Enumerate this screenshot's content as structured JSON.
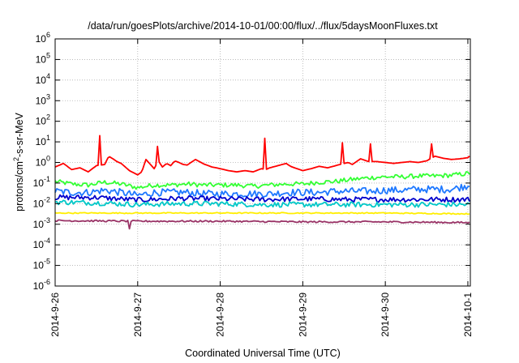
{
  "chart_data": {
    "type": "line",
    "title": "/data/run/goesPlots/archive/2014-10-01/00:00/flux/../flux/5daysMoonFluxes.txt",
    "xlabel": "Coordinated Universal Time (UTC)",
    "ylabel_parts": {
      "base": "protons/cm",
      "sup": "2",
      "rest": "-s-sr-MeV"
    },
    "y_scale": "log",
    "ylim": [
      1e-06,
      1000000.0
    ],
    "y_ticks": [
      {
        "mant": "10",
        "exp": "-6",
        "value": 1e-06
      },
      {
        "mant": "10",
        "exp": "-5",
        "value": 1e-05
      },
      {
        "mant": "10",
        "exp": "-4",
        "value": 0.0001
      },
      {
        "mant": "10",
        "exp": "-3",
        "value": 0.001
      },
      {
        "mant": "10",
        "exp": "-2",
        "value": 0.01
      },
      {
        "mant": "10",
        "exp": "-1",
        "value": 0.1
      },
      {
        "mant": "10",
        "exp": "0",
        "value": 1.0
      },
      {
        "mant": "10",
        "exp": "1",
        "value": 10.0
      },
      {
        "mant": "10",
        "exp": "2",
        "value": 100.0
      },
      {
        "mant": "10",
        "exp": "3",
        "value": 1000.0
      },
      {
        "mant": "10",
        "exp": "4",
        "value": 10000.0
      },
      {
        "mant": "10",
        "exp": "5",
        "value": 100000.0
      },
      {
        "mant": "10",
        "exp": "6",
        "value": 1000000.0
      }
    ],
    "x_range_days": [
      0,
      5.03
    ],
    "x_ticks": [
      {
        "label": "2014-9-26",
        "day": 0
      },
      {
        "label": "2014-9-27",
        "day": 1
      },
      {
        "label": "2014-9-28",
        "day": 2
      },
      {
        "label": "2014-9-29",
        "day": 3
      },
      {
        "label": "2014-9-30",
        "day": 4
      },
      {
        "label": "2014-10-1",
        "day": 5
      }
    ],
    "grid": true,
    "legend": "none",
    "series": [
      {
        "color": "#ff0000",
        "points": [
          [
            0.0,
            0.6
          ],
          [
            0.1,
            0.9
          ],
          [
            0.2,
            0.45
          ],
          [
            0.3,
            0.55
          ],
          [
            0.4,
            0.35
          ],
          [
            0.5,
            0.7
          ],
          [
            0.6,
            0.8
          ],
          [
            0.65,
            2.0
          ],
          [
            0.7,
            1.5
          ],
          [
            0.75,
            1.1
          ],
          [
            0.8,
            0.9
          ],
          [
            0.9,
            0.4
          ],
          [
            1.0,
            0.25
          ],
          [
            1.05,
            0.35
          ],
          [
            1.1,
            1.4
          ],
          [
            1.2,
            0.5
          ],
          [
            1.25,
            1.2
          ],
          [
            1.3,
            0.6
          ],
          [
            1.35,
            0.9
          ],
          [
            1.4,
            0.7
          ],
          [
            1.45,
            1.2
          ],
          [
            1.5,
            1.0
          ],
          [
            1.55,
            0.8
          ],
          [
            1.6,
            0.75
          ],
          [
            1.7,
            1.4
          ],
          [
            1.8,
            0.85
          ],
          [
            1.9,
            0.6
          ],
          [
            2.0,
            0.5
          ],
          [
            2.1,
            0.4
          ],
          [
            2.2,
            0.35
          ],
          [
            2.3,
            0.4
          ],
          [
            2.4,
            0.35
          ],
          [
            2.5,
            0.5
          ],
          [
            2.55,
            0.45
          ],
          [
            2.6,
            0.55
          ],
          [
            2.7,
            0.7
          ],
          [
            2.8,
            0.9
          ],
          [
            2.85,
            0.65
          ],
          [
            2.9,
            0.55
          ],
          [
            3.0,
            0.4
          ],
          [
            3.1,
            0.5
          ],
          [
            3.2,
            0.65
          ],
          [
            3.3,
            0.55
          ],
          [
            3.4,
            0.7
          ],
          [
            3.45,
            0.8
          ],
          [
            3.5,
            0.9
          ],
          [
            3.55,
            1.0
          ],
          [
            3.6,
            0.8
          ],
          [
            3.7,
            1.5
          ],
          [
            3.8,
            1.1
          ],
          [
            3.9,
            1.1
          ],
          [
            4.0,
            1.0
          ],
          [
            4.1,
            0.9
          ],
          [
            4.2,
            1.0
          ],
          [
            4.3,
            1.1
          ],
          [
            4.4,
            1.0
          ],
          [
            4.5,
            1.2
          ],
          [
            4.6,
            2.0
          ],
          [
            4.7,
            1.6
          ],
          [
            4.8,
            1.4
          ],
          [
            4.9,
            1.5
          ],
          [
            5.0,
            1.7
          ],
          [
            5.03,
            2.2
          ]
        ],
        "spikes": [
          [
            0.55,
            20.0
          ],
          [
            1.25,
            6.0
          ],
          [
            2.55,
            15.0
          ],
          [
            3.48,
            9.0
          ],
          [
            3.82,
            8.0
          ],
          [
            4.55,
            8.0
          ]
        ]
      },
      {
        "color": "#33ff33",
        "points": [
          [
            0.0,
            0.12
          ],
          [
            0.2,
            0.09
          ],
          [
            0.4,
            0.08
          ],
          [
            0.6,
            0.11
          ],
          [
            0.8,
            0.09
          ],
          [
            1.0,
            0.06
          ],
          [
            1.2,
            0.08
          ],
          [
            1.4,
            0.08
          ],
          [
            1.6,
            0.09
          ],
          [
            1.8,
            0.08
          ],
          [
            2.0,
            0.08
          ],
          [
            2.2,
            0.08
          ],
          [
            2.4,
            0.07
          ],
          [
            2.6,
            0.08
          ],
          [
            2.8,
            0.09
          ],
          [
            3.0,
            0.09
          ],
          [
            3.2,
            0.11
          ],
          [
            3.4,
            0.12
          ],
          [
            3.6,
            0.15
          ],
          [
            3.8,
            0.18
          ],
          [
            4.0,
            0.2
          ],
          [
            4.2,
            0.2
          ],
          [
            4.4,
            0.22
          ],
          [
            4.6,
            0.22
          ],
          [
            4.8,
            0.24
          ],
          [
            5.03,
            0.3
          ]
        ],
        "noise": 0.22
      },
      {
        "color": "#1e78ff",
        "points": [
          [
            0.0,
            0.04
          ],
          [
            0.2,
            0.035
          ],
          [
            0.4,
            0.035
          ],
          [
            0.6,
            0.045
          ],
          [
            0.8,
            0.035
          ],
          [
            1.0,
            0.025
          ],
          [
            1.2,
            0.035
          ],
          [
            1.4,
            0.035
          ],
          [
            1.6,
            0.035
          ],
          [
            1.8,
            0.03
          ],
          [
            2.0,
            0.03
          ],
          [
            2.2,
            0.03
          ],
          [
            2.4,
            0.03
          ],
          [
            2.6,
            0.03
          ],
          [
            2.8,
            0.035
          ],
          [
            3.0,
            0.035
          ],
          [
            3.2,
            0.035
          ],
          [
            3.4,
            0.04
          ],
          [
            3.6,
            0.04
          ],
          [
            3.8,
            0.04
          ],
          [
            4.0,
            0.045
          ],
          [
            4.2,
            0.045
          ],
          [
            4.4,
            0.05
          ],
          [
            4.6,
            0.05
          ],
          [
            4.8,
            0.05
          ],
          [
            5.03,
            0.08
          ]
        ],
        "noise": 0.35
      },
      {
        "color": "#0000cc",
        "points": [
          [
            0.0,
            0.02
          ],
          [
            0.5,
            0.02
          ],
          [
            1.0,
            0.015
          ],
          [
            1.5,
            0.018
          ],
          [
            2.0,
            0.017
          ],
          [
            2.5,
            0.016
          ],
          [
            3.0,
            0.017
          ],
          [
            3.5,
            0.016
          ],
          [
            4.0,
            0.016
          ],
          [
            4.5,
            0.016
          ],
          [
            5.03,
            0.016
          ]
        ],
        "noise": 0.25
      },
      {
        "color": "#00c8c8",
        "points": [
          [
            0.0,
            0.012
          ],
          [
            0.5,
            0.011
          ],
          [
            1.0,
            0.009
          ],
          [
            1.5,
            0.01
          ],
          [
            2.0,
            0.01
          ],
          [
            2.5,
            0.009
          ],
          [
            3.0,
            0.009
          ],
          [
            3.5,
            0.009
          ],
          [
            4.0,
            0.009
          ],
          [
            4.5,
            0.009
          ],
          [
            5.03,
            0.009
          ]
        ],
        "noise": 0.25
      },
      {
        "color": "#ffee00",
        "points": [
          [
            0.0,
            0.0035
          ],
          [
            1.0,
            0.0035
          ],
          [
            2.0,
            0.0035
          ],
          [
            3.0,
            0.0035
          ],
          [
            4.0,
            0.0035
          ],
          [
            5.03,
            0.0032
          ]
        ],
        "noise": 0.05
      },
      {
        "color": "#993366",
        "points": [
          [
            0.0,
            0.0015
          ],
          [
            1.0,
            0.0014
          ],
          [
            2.0,
            0.0014
          ],
          [
            3.0,
            0.0013
          ],
          [
            4.0,
            0.0013
          ],
          [
            5.03,
            0.0012
          ]
        ],
        "noise": 0.08,
        "dips": [
          [
            0.9,
            0.0006
          ]
        ]
      }
    ]
  }
}
